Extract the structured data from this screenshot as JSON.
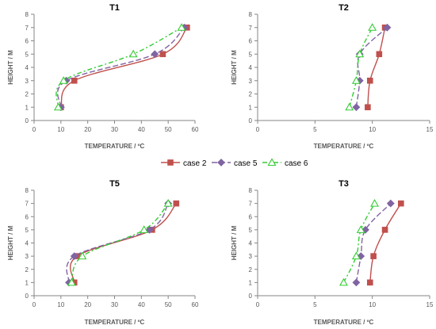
{
  "legend": {
    "entries": [
      {
        "label": "case 2",
        "color": "#C0504D",
        "marker": "square",
        "dash": "solid"
      },
      {
        "label": "case 5",
        "color": "#8064A2",
        "marker": "diamond",
        "dash": "long-dash"
      },
      {
        "label": "case 6",
        "color": "#33CC33",
        "marker": "triangle-open",
        "dash": "dash-dot"
      }
    ]
  },
  "chart_data": [
    {
      "type": "line",
      "title": "T1",
      "xlabel": "TEMPERATURE / ºC",
      "ylabel": "HEIGHT / M",
      "xlim": [
        0,
        60
      ],
      "ylim": [
        0,
        8
      ],
      "xticks": [
        "0",
        "10",
        "20",
        "30",
        "40",
        "50",
        "60"
      ],
      "yticks": [
        "0",
        "1",
        "2",
        "3",
        "4",
        "5",
        "6",
        "7",
        "8"
      ],
      "grid": false,
      "legend": "bottom-center",
      "series": [
        {
          "name": "case 2",
          "x": [
            10,
            15,
            48,
            57
          ],
          "y": [
            1,
            3,
            5,
            7
          ]
        },
        {
          "name": "case 5",
          "x": [
            10,
            12,
            45,
            56
          ],
          "y": [
            1,
            3,
            5,
            7
          ]
        },
        {
          "name": "case 6",
          "x": [
            9,
            11,
            37,
            55
          ],
          "y": [
            1,
            3,
            5,
            7
          ]
        }
      ]
    },
    {
      "type": "line",
      "title": "T2",
      "xlabel": "TEMPERATURE / ºC",
      "ylabel": "HEIGHT / M",
      "xlim": [
        0,
        15
      ],
      "ylim": [
        0,
        8
      ],
      "xticks": [
        "0",
        "5",
        "10",
        "15"
      ],
      "yticks": [
        "0",
        "1",
        "2",
        "3",
        "4",
        "5",
        "6",
        "7",
        "8"
      ],
      "grid": false,
      "legend": "bottom-center",
      "series": [
        {
          "name": "case 2",
          "x": [
            9.6,
            9.8,
            10.6,
            11.1
          ],
          "y": [
            1,
            3,
            5,
            7
          ]
        },
        {
          "name": "case 5",
          "x": [
            8.6,
            8.9,
            8.9,
            11.3
          ],
          "y": [
            1,
            3,
            5,
            7
          ]
        },
        {
          "name": "case 6",
          "x": [
            8.0,
            8.6,
            8.9,
            10.0
          ],
          "y": [
            1,
            3,
            5,
            7
          ]
        }
      ]
    },
    {
      "type": "line",
      "title": "T5",
      "xlabel": "TEMPERATURE / ºC",
      "ylabel": "HEIGHT / M",
      "xlim": [
        0,
        60
      ],
      "ylim": [
        0,
        8
      ],
      "xticks": [
        "0",
        "10",
        "20",
        "30",
        "40",
        "50",
        "60"
      ],
      "yticks": [
        "0",
        "1",
        "2",
        "3",
        "4",
        "5",
        "6",
        "7",
        "8"
      ],
      "grid": false,
      "legend": "bottom-center",
      "series": [
        {
          "name": "case 2",
          "x": [
            15,
            16,
            44,
            53
          ],
          "y": [
            1,
            3,
            5,
            7
          ]
        },
        {
          "name": "case 5",
          "x": [
            13,
            15,
            43,
            50
          ],
          "y": [
            1,
            3,
            5,
            7
          ]
        },
        {
          "name": "case 6",
          "x": [
            14,
            18,
            41,
            50
          ],
          "y": [
            1,
            3,
            5,
            7
          ]
        }
      ]
    },
    {
      "type": "line",
      "title": "T3",
      "xlabel": "TEMPERATURE / ºC",
      "ylabel": "HEIGHT / M",
      "xlim": [
        0,
        15
      ],
      "ylim": [
        0,
        8
      ],
      "xticks": [
        "0",
        "5",
        "10",
        "15"
      ],
      "yticks": [
        "0",
        "1",
        "2",
        "3",
        "4",
        "5",
        "6",
        "7",
        "8"
      ],
      "grid": false,
      "legend": "bottom-center",
      "series": [
        {
          "name": "case 2",
          "x": [
            9.8,
            10.1,
            11.1,
            12.5
          ],
          "y": [
            1,
            3,
            5,
            7
          ]
        },
        {
          "name": "case 5",
          "x": [
            8.6,
            9.0,
            9.4,
            11.6
          ],
          "y": [
            1,
            3,
            5,
            7
          ]
        },
        {
          "name": "case 6",
          "x": [
            7.5,
            8.6,
            9.0,
            10.2
          ],
          "y": [
            1,
            3,
            5,
            7
          ]
        }
      ]
    }
  ]
}
